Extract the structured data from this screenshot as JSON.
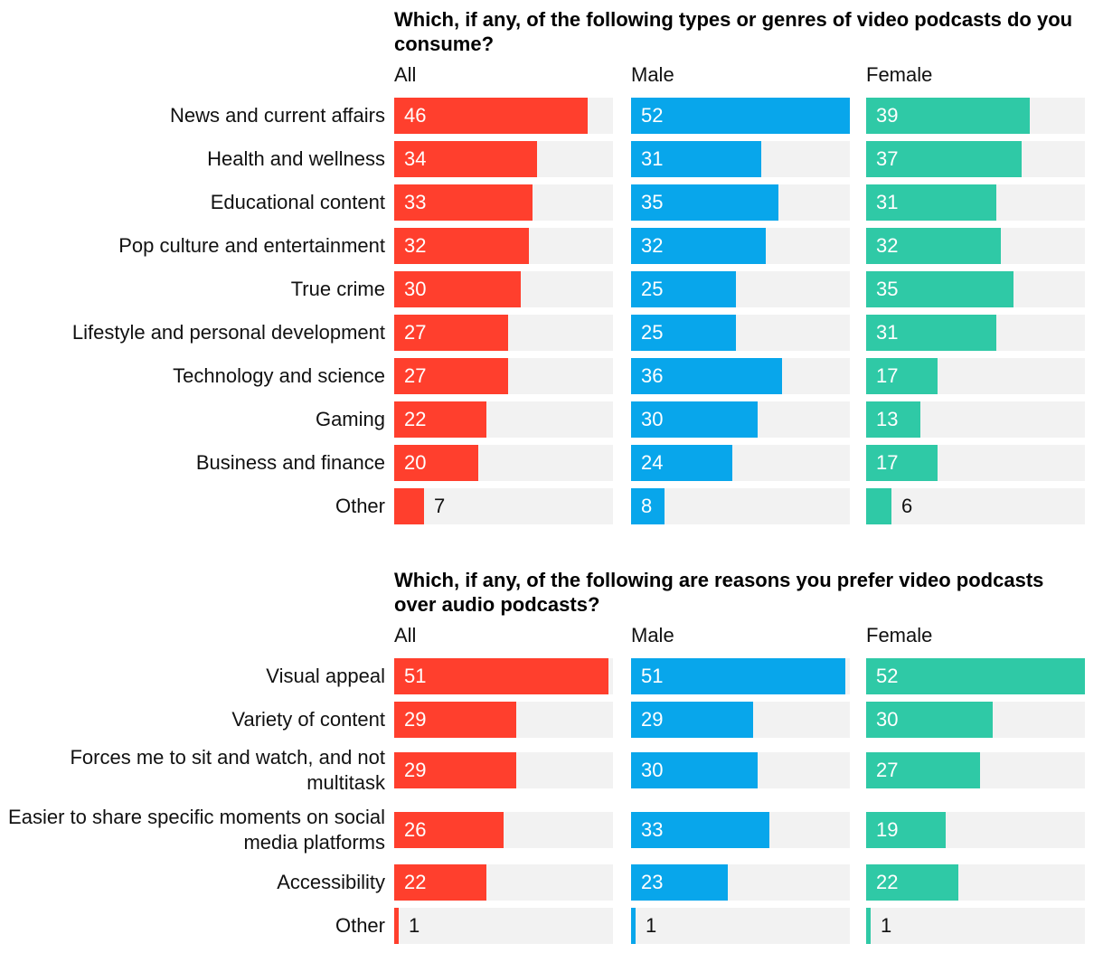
{
  "chart_data": [
    {
      "type": "bar",
      "orientation": "horizontal",
      "title": "Which, if any, of the following types or genres of video podcasts do you consume?",
      "categories": [
        "News and current affairs",
        "Health and wellness",
        "Educational content",
        "Pop culture and entertainment",
        "True crime",
        "Lifestyle and personal development",
        "Technology and science",
        "Gaming",
        "Business and finance",
        "Other"
      ],
      "series": [
        {
          "name": "All",
          "color": "#ff3f2d",
          "values": [
            46,
            34,
            33,
            32,
            30,
            27,
            27,
            22,
            20,
            7
          ]
        },
        {
          "name": "Male",
          "color": "#08a6eb",
          "values": [
            52,
            31,
            35,
            32,
            25,
            25,
            36,
            30,
            24,
            8
          ]
        },
        {
          "name": "Female",
          "color": "#2fc9a6",
          "values": [
            39,
            37,
            31,
            32,
            35,
            31,
            17,
            13,
            17,
            6
          ]
        }
      ],
      "xlim": [
        0,
        52
      ],
      "track_color": "#f2f2f2"
    },
    {
      "type": "bar",
      "orientation": "horizontal",
      "title": "Which, if any, of the following are reasons you prefer video podcasts over audio podcasts?",
      "categories": [
        "Visual appeal",
        "Variety of content",
        "Forces me to sit and watch, and not multitask",
        "Easier to share specific moments on social media platforms",
        "Accessibility",
        "Other"
      ],
      "series": [
        {
          "name": "All",
          "color": "#ff3f2d",
          "values": [
            51,
            29,
            29,
            26,
            22,
            1
          ]
        },
        {
          "name": "Male",
          "color": "#08a6eb",
          "values": [
            51,
            29,
            30,
            33,
            23,
            1
          ]
        },
        {
          "name": "Female",
          "color": "#2fc9a6",
          "values": [
            52,
            30,
            27,
            19,
            22,
            1
          ]
        }
      ],
      "xlim": [
        0,
        52
      ],
      "track_color": "#f2f2f2"
    }
  ]
}
